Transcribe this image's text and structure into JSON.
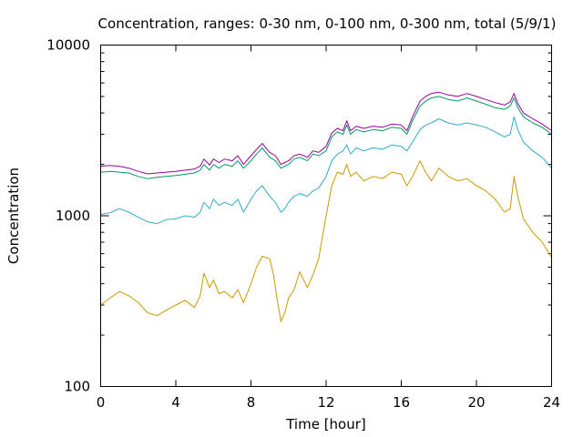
{
  "chart_data": {
    "type": "line",
    "title": "Concentration, ranges: 0-30 nm, 0-100 nm, 0-300 nm, total (5/9/1)",
    "xlabel": "Time [hour]",
    "ylabel": "Concentration",
    "y_scale": "log",
    "xlim": [
      0,
      24
    ],
    "ylim": [
      100,
      10000
    ],
    "x_ticks": [
      0,
      4,
      8,
      12,
      16,
      20,
      24
    ],
    "x_tick_labels": [
      "0",
      "4",
      "8",
      "12",
      "16",
      "20",
      "24"
    ],
    "y_ticks": [
      100,
      1000,
      10000
    ],
    "y_tick_labels": [
      "100",
      "1000",
      "10000"
    ],
    "grid": false,
    "legend": "none",
    "series": [
      {
        "color": "#cc9900",
        "points": [
          [
            0,
            300
          ],
          [
            0.5,
            330
          ],
          [
            1,
            360
          ],
          [
            1.5,
            340
          ],
          [
            2,
            310
          ],
          [
            2.5,
            270
          ],
          [
            3,
            260
          ],
          [
            3.5,
            280
          ],
          [
            4,
            300
          ],
          [
            4.5,
            320
          ],
          [
            5,
            290
          ],
          [
            5.3,
            340
          ],
          [
            5.5,
            460
          ],
          [
            5.8,
            380
          ],
          [
            6,
            420
          ],
          [
            6.3,
            350
          ],
          [
            6.6,
            360
          ],
          [
            7,
            330
          ],
          [
            7.3,
            370
          ],
          [
            7.6,
            310
          ],
          [
            8,
            400
          ],
          [
            8.3,
            500
          ],
          [
            8.6,
            580
          ],
          [
            9,
            560
          ],
          [
            9.2,
            450
          ],
          [
            9.4,
            320
          ],
          [
            9.6,
            240
          ],
          [
            9.8,
            270
          ],
          [
            10,
            330
          ],
          [
            10.3,
            370
          ],
          [
            10.6,
            470
          ],
          [
            10.8,
            420
          ],
          [
            11,
            380
          ],
          [
            11.3,
            450
          ],
          [
            11.6,
            560
          ],
          [
            12,
            1000
          ],
          [
            12.3,
            1500
          ],
          [
            12.6,
            1800
          ],
          [
            12.9,
            1750
          ],
          [
            13.1,
            2000
          ],
          [
            13.3,
            1700
          ],
          [
            13.6,
            1800
          ],
          [
            14,
            1600
          ],
          [
            14.5,
            1700
          ],
          [
            15,
            1650
          ],
          [
            15.5,
            1800
          ],
          [
            16,
            1750
          ],
          [
            16.3,
            1500
          ],
          [
            16.6,
            1700
          ],
          [
            17,
            2100
          ],
          [
            17.3,
            1800
          ],
          [
            17.6,
            1600
          ],
          [
            18,
            1900
          ],
          [
            18.5,
            1700
          ],
          [
            19,
            1600
          ],
          [
            19.5,
            1650
          ],
          [
            20,
            1500
          ],
          [
            20.5,
            1400
          ],
          [
            21,
            1250
          ],
          [
            21.5,
            1050
          ],
          [
            21.8,
            1100
          ],
          [
            22,
            1700
          ],
          [
            22.2,
            1300
          ],
          [
            22.5,
            960
          ],
          [
            23,
            800
          ],
          [
            23.5,
            700
          ],
          [
            24,
            570
          ]
        ]
      },
      {
        "color": "#33aacc",
        "points": [
          [
            0,
            1020
          ],
          [
            0.5,
            1040
          ],
          [
            1,
            1100
          ],
          [
            1.5,
            1050
          ],
          [
            2,
            980
          ],
          [
            2.5,
            920
          ],
          [
            3,
            900
          ],
          [
            3.5,
            950
          ],
          [
            4,
            960
          ],
          [
            4.5,
            1000
          ],
          [
            5,
            980
          ],
          [
            5.3,
            1050
          ],
          [
            5.5,
            1200
          ],
          [
            5.8,
            1100
          ],
          [
            6,
            1250
          ],
          [
            6.3,
            1150
          ],
          [
            6.6,
            1200
          ],
          [
            7,
            1150
          ],
          [
            7.3,
            1250
          ],
          [
            7.6,
            1050
          ],
          [
            8,
            1250
          ],
          [
            8.3,
            1400
          ],
          [
            8.6,
            1500
          ],
          [
            9,
            1300
          ],
          [
            9.3,
            1200
          ],
          [
            9.6,
            1050
          ],
          [
            9.8,
            1100
          ],
          [
            10,
            1200
          ],
          [
            10.3,
            1300
          ],
          [
            10.6,
            1350
          ],
          [
            11,
            1300
          ],
          [
            11.3,
            1400
          ],
          [
            11.6,
            1450
          ],
          [
            12,
            1700
          ],
          [
            12.3,
            2100
          ],
          [
            12.6,
            2300
          ],
          [
            12.9,
            2400
          ],
          [
            13.1,
            2600
          ],
          [
            13.3,
            2300
          ],
          [
            13.6,
            2500
          ],
          [
            14,
            2400
          ],
          [
            14.5,
            2500
          ],
          [
            15,
            2450
          ],
          [
            15.5,
            2600
          ],
          [
            16,
            2550
          ],
          [
            16.3,
            2400
          ],
          [
            16.6,
            2700
          ],
          [
            17,
            3200
          ],
          [
            17.3,
            3400
          ],
          [
            17.6,
            3500
          ],
          [
            18,
            3700
          ],
          [
            18.5,
            3500
          ],
          [
            19,
            3400
          ],
          [
            19.5,
            3500
          ],
          [
            20,
            3400
          ],
          [
            20.5,
            3300
          ],
          [
            21,
            3100
          ],
          [
            21.5,
            2900
          ],
          [
            21.8,
            3000
          ],
          [
            22,
            3800
          ],
          [
            22.2,
            3200
          ],
          [
            22.5,
            2700
          ],
          [
            23,
            2400
          ],
          [
            23.5,
            2200
          ],
          [
            24,
            1900
          ]
        ]
      },
      {
        "color": "#009966",
        "points": [
          [
            0,
            1800
          ],
          [
            0.5,
            1820
          ],
          [
            1,
            1800
          ],
          [
            1.5,
            1780
          ],
          [
            2,
            1700
          ],
          [
            2.5,
            1650
          ],
          [
            3,
            1680
          ],
          [
            3.5,
            1700
          ],
          [
            4,
            1720
          ],
          [
            4.5,
            1750
          ],
          [
            5,
            1780
          ],
          [
            5.3,
            1850
          ],
          [
            5.5,
            2000
          ],
          [
            5.8,
            1850
          ],
          [
            6,
            2000
          ],
          [
            6.3,
            1900
          ],
          [
            6.6,
            2000
          ],
          [
            7,
            1950
          ],
          [
            7.3,
            2100
          ],
          [
            7.6,
            1900
          ],
          [
            8,
            2100
          ],
          [
            8.3,
            2300
          ],
          [
            8.6,
            2500
          ],
          [
            9,
            2200
          ],
          [
            9.3,
            2100
          ],
          [
            9.6,
            1900
          ],
          [
            9.8,
            1950
          ],
          [
            10,
            2000
          ],
          [
            10.3,
            2150
          ],
          [
            10.6,
            2200
          ],
          [
            11,
            2100
          ],
          [
            11.3,
            2300
          ],
          [
            11.6,
            2250
          ],
          [
            12,
            2400
          ],
          [
            12.3,
            2900
          ],
          [
            12.6,
            3100
          ],
          [
            12.9,
            3000
          ],
          [
            13.1,
            3400
          ],
          [
            13.3,
            3000
          ],
          [
            13.6,
            3200
          ],
          [
            14,
            3100
          ],
          [
            14.5,
            3200
          ],
          [
            15,
            3150
          ],
          [
            15.5,
            3300
          ],
          [
            16,
            3250
          ],
          [
            16.3,
            3000
          ],
          [
            16.6,
            3600
          ],
          [
            17,
            4400
          ],
          [
            17.3,
            4700
          ],
          [
            17.6,
            4900
          ],
          [
            18,
            5000
          ],
          [
            18.5,
            4800
          ],
          [
            19,
            4700
          ],
          [
            19.5,
            4900
          ],
          [
            20,
            4700
          ],
          [
            20.5,
            4500
          ],
          [
            21,
            4300
          ],
          [
            21.5,
            4200
          ],
          [
            21.8,
            4400
          ],
          [
            22,
            4900
          ],
          [
            22.2,
            4300
          ],
          [
            22.5,
            3800
          ],
          [
            23,
            3500
          ],
          [
            23.5,
            3300
          ],
          [
            24,
            3000
          ]
        ]
      },
      {
        "color": "#990099",
        "points": [
          [
            0,
            1950
          ],
          [
            0.5,
            1970
          ],
          [
            1,
            1950
          ],
          [
            1.5,
            1900
          ],
          [
            2,
            1820
          ],
          [
            2.5,
            1760
          ],
          [
            3,
            1780
          ],
          [
            3.5,
            1800
          ],
          [
            4,
            1820
          ],
          [
            4.5,
            1850
          ],
          [
            5,
            1880
          ],
          [
            5.3,
            1950
          ],
          [
            5.5,
            2150
          ],
          [
            5.8,
            1980
          ],
          [
            6,
            2150
          ],
          [
            6.3,
            2050
          ],
          [
            6.6,
            2150
          ],
          [
            7,
            2100
          ],
          [
            7.3,
            2250
          ],
          [
            7.6,
            2000
          ],
          [
            8,
            2250
          ],
          [
            8.3,
            2450
          ],
          [
            8.6,
            2650
          ],
          [
            9,
            2350
          ],
          [
            9.3,
            2250
          ],
          [
            9.6,
            2000
          ],
          [
            9.8,
            2050
          ],
          [
            10,
            2100
          ],
          [
            10.3,
            2250
          ],
          [
            10.6,
            2300
          ],
          [
            11,
            2200
          ],
          [
            11.3,
            2400
          ],
          [
            11.6,
            2350
          ],
          [
            12,
            2550
          ],
          [
            12.3,
            3050
          ],
          [
            12.6,
            3250
          ],
          [
            12.9,
            3150
          ],
          [
            13.1,
            3600
          ],
          [
            13.3,
            3150
          ],
          [
            13.6,
            3350
          ],
          [
            14,
            3250
          ],
          [
            14.5,
            3350
          ],
          [
            15,
            3300
          ],
          [
            15.5,
            3450
          ],
          [
            16,
            3400
          ],
          [
            16.3,
            3150
          ],
          [
            16.6,
            3800
          ],
          [
            17,
            4700
          ],
          [
            17.3,
            5000
          ],
          [
            17.6,
            5200
          ],
          [
            18,
            5300
          ],
          [
            18.5,
            5100
          ],
          [
            19,
            5000
          ],
          [
            19.5,
            5200
          ],
          [
            20,
            5000
          ],
          [
            20.5,
            4800
          ],
          [
            21,
            4600
          ],
          [
            21.5,
            4450
          ],
          [
            21.8,
            4650
          ],
          [
            22,
            5200
          ],
          [
            22.2,
            4550
          ],
          [
            22.5,
            4000
          ],
          [
            23,
            3700
          ],
          [
            23.5,
            3450
          ],
          [
            24,
            3150
          ]
        ]
      }
    ]
  }
}
